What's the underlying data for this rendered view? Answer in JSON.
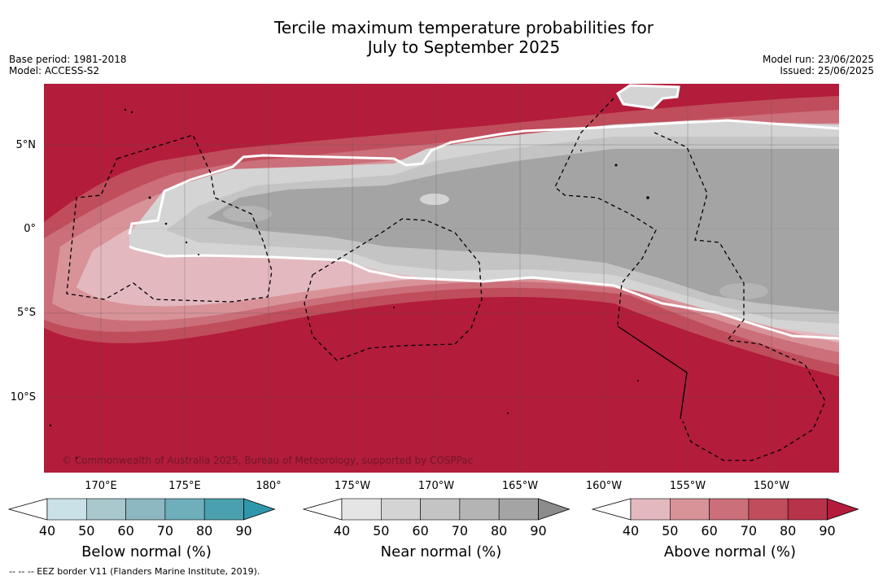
{
  "title_line1": "Tercile maximum temperature probabilities for",
  "title_line2": "July to September 2025",
  "base_period": "Base period: 1981-2018",
  "model": "Model: ACCESS-S2",
  "model_run": "Model run: 23/06/2025",
  "issued": "Issued: 25/06/2025",
  "copyright": "© Commonwealth of Australia 2025, Bureau of Meteorology, supported by COSPPac",
  "lat_labels": [
    "5°N",
    "0°",
    "5°S",
    "10°S"
  ],
  "lon_labels": [
    "170°E",
    "175°E",
    "180°",
    "175°W",
    "170°W",
    "165°W",
    "160°W",
    "155°W",
    "150°W"
  ],
  "colorbars": [
    {
      "label": "Below normal (%)",
      "ticks": [
        "40",
        "50",
        "60",
        "70",
        "80",
        "90"
      ],
      "colors": [
        "#ffffff",
        "#c9e1e7",
        "#a9c8ce",
        "#8cb8c2",
        "#6faebb",
        "#4aa0ae",
        "#2f97ab"
      ]
    },
    {
      "label": "Near normal (%)",
      "ticks": [
        "40",
        "50",
        "60",
        "70",
        "80",
        "90"
      ],
      "colors": [
        "#ffffff",
        "#e5e5e5",
        "#d4d4d4",
        "#c4c4c4",
        "#b4b4b4",
        "#a4a4a4",
        "#8c8c8c"
      ]
    },
    {
      "label": "Above normal (%)",
      "ticks": [
        "40",
        "50",
        "60",
        "70",
        "80",
        "90"
      ],
      "colors": [
        "#ffffff",
        "#e3b9bf",
        "#d89399",
        "#cb6f7a",
        "#c04d5c",
        "#b8324a",
        "#b31c3b"
      ]
    }
  ],
  "footnote": "--  --  -- EEZ border V11 (Flanders Marine Institute, 2019)."
}
